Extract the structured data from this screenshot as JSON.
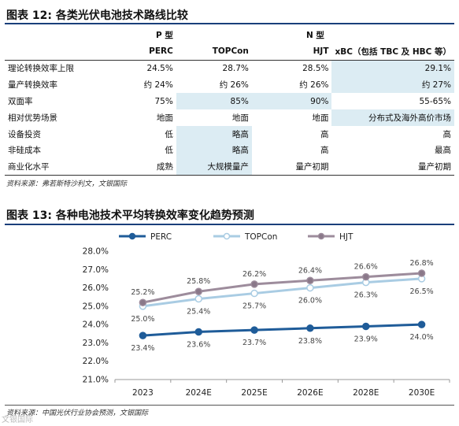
{
  "table12": {
    "title": "图表 12: 各类光伏电池技术路线比较",
    "group_p": "P 型",
    "group_n": "N 型",
    "columns": [
      "PERC",
      "TOPCon",
      "HJT",
      "xBC（包括 TBC 及 HBC 等）"
    ],
    "rows": [
      {
        "label": "理论转换效率上限",
        "cells": [
          "24.5%",
          "28.7%",
          "28.5%",
          "29.1%"
        ]
      },
      {
        "label": "量产转换效率",
        "cells": [
          "约 24%",
          "约 26%",
          "约 26%",
          "约 27%"
        ]
      },
      {
        "label": "双面率",
        "cells": [
          "75%",
          "85%",
          "90%",
          "55-65%"
        ]
      },
      {
        "label": "相对优势场景",
        "cells": [
          "地面",
          "地面",
          "地面",
          "分布式及海外高价市场"
        ]
      },
      {
        "label": "设备投资",
        "cells": [
          "低",
          "略高",
          "高",
          "高"
        ]
      },
      {
        "label": "非硅成本",
        "cells": [
          "低",
          "略高",
          "高",
          "最高"
        ]
      },
      {
        "label": "商业化水平",
        "cells": [
          "成熟",
          "大规模量产",
          "量产初期",
          "量产初期"
        ]
      }
    ],
    "source": "资料来源：弗若斯特沙利文，文银国际"
  },
  "chart13": {
    "title": "图表 13: 各种电池技术平均转换效率变化趋势预测",
    "source": "资料来源：中国光伏行业协会预测，文银国际",
    "watermark": "文银国际"
  },
  "chart_data": {
    "type": "line",
    "x": [
      "2023",
      "2024E",
      "2025E",
      "2026E",
      "2028E",
      "2030E"
    ],
    "series": [
      {
        "name": "PERC",
        "values": [
          23.4,
          23.6,
          23.7,
          23.8,
          23.9,
          24.0
        ],
        "labels": [
          "23.4%",
          "23.6%",
          "23.7%",
          "23.8%",
          "23.9%",
          "24.0%"
        ],
        "color": "#1f5c99",
        "marker": "#1f5c99"
      },
      {
        "name": "TOPCon",
        "values": [
          25.0,
          25.4,
          25.7,
          26.0,
          26.3,
          26.5
        ],
        "labels": [
          "25.0%",
          "25.4%",
          "25.7%",
          "26.0%",
          "26.3%",
          "26.5%"
        ],
        "color": "#a9cce3",
        "marker": "#ffffff"
      },
      {
        "name": "HJT",
        "values": [
          25.2,
          25.8,
          26.2,
          26.4,
          26.6,
          26.8
        ],
        "labels": [
          "25.2%",
          "25.8%",
          "26.2%",
          "26.4%",
          "26.6%",
          "26.8%"
        ],
        "color": "#9d8c9c",
        "marker": "#8a7889"
      }
    ],
    "ylim": [
      21.0,
      28.0
    ],
    "yticks": [
      "21.0%",
      "22.0%",
      "23.0%",
      "24.0%",
      "25.0%",
      "26.0%",
      "27.0%",
      "28.0%"
    ],
    "grid": false,
    "legend": "top"
  }
}
